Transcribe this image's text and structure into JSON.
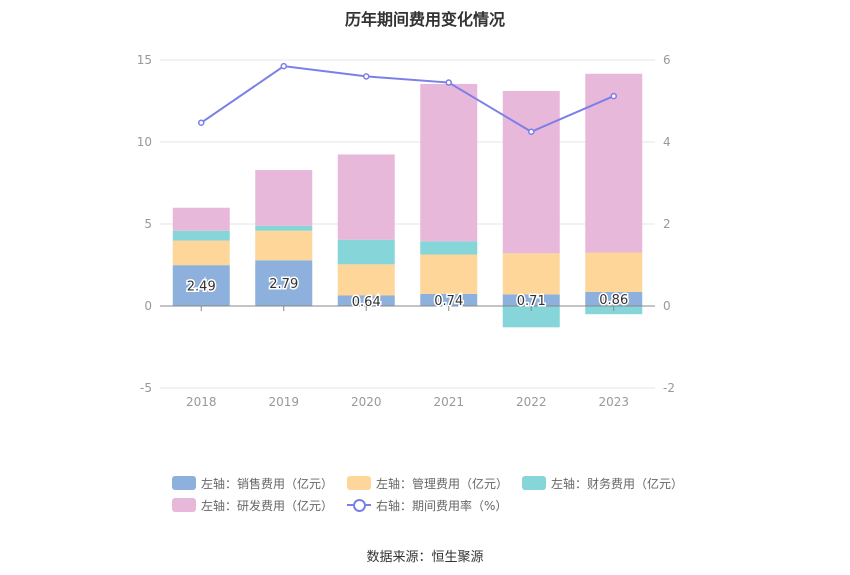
{
  "title": "历年期间费用变化情况",
  "source_text": "数据来源：恒生聚源",
  "legend": [
    {
      "label": "左轴：销售费用（亿元）",
      "color": "#8eb0dc"
    },
    {
      "label": "左轴：管理费用（亿元）",
      "color": "#fed699"
    },
    {
      "label": "左轴：财务费用（亿元）",
      "color": "#85d5d9"
    },
    {
      "label": "左轴：研发费用（亿元）",
      "color": "#e8b8da"
    },
    {
      "label": "右轴：期间费用率（%）",
      "color": "#7b7fe8"
    }
  ],
  "chart_data": {
    "type": "bar",
    "stacked": true,
    "categories": [
      "2018",
      "2019",
      "2020",
      "2021",
      "2022",
      "2023"
    ],
    "left_axis": {
      "ylim": [
        -5,
        15
      ],
      "ticks": [
        -5,
        0,
        5,
        10,
        15
      ]
    },
    "right_axis": {
      "ylim": [
        -2,
        6
      ],
      "ticks": [
        -2,
        0,
        2,
        4,
        6
      ]
    },
    "series": [
      {
        "name": "左轴：销售费用（亿元）",
        "axis": "left",
        "color": "#8eb0dc",
        "values": [
          2.49,
          2.79,
          0.64,
          0.74,
          0.71,
          0.86
        ],
        "labels": [
          "2.49",
          "2.79",
          "0.64",
          "0.74",
          "0.71",
          "0.86"
        ]
      },
      {
        "name": "左轴：管理费用（亿元）",
        "axis": "left",
        "color": "#fed699",
        "values": [
          1.5,
          1.8,
          1.9,
          2.4,
          2.5,
          2.4
        ]
      },
      {
        "name": "左轴：财务费用（亿元）",
        "axis": "left",
        "color": "#85d5d9",
        "values": [
          0.6,
          0.3,
          1.5,
          0.8,
          -1.3,
          -0.5
        ]
      },
      {
        "name": "左轴：研发费用（亿元）",
        "axis": "left",
        "color": "#e8b8da",
        "values": [
          1.4,
          3.4,
          5.2,
          9.6,
          9.9,
          10.9
        ]
      },
      {
        "name": "右轴：期间费用率（%）",
        "axis": "right",
        "type": "line",
        "color": "#7b7fe8",
        "values": [
          4.47,
          5.85,
          5.6,
          5.45,
          4.25,
          5.12
        ]
      }
    ]
  }
}
